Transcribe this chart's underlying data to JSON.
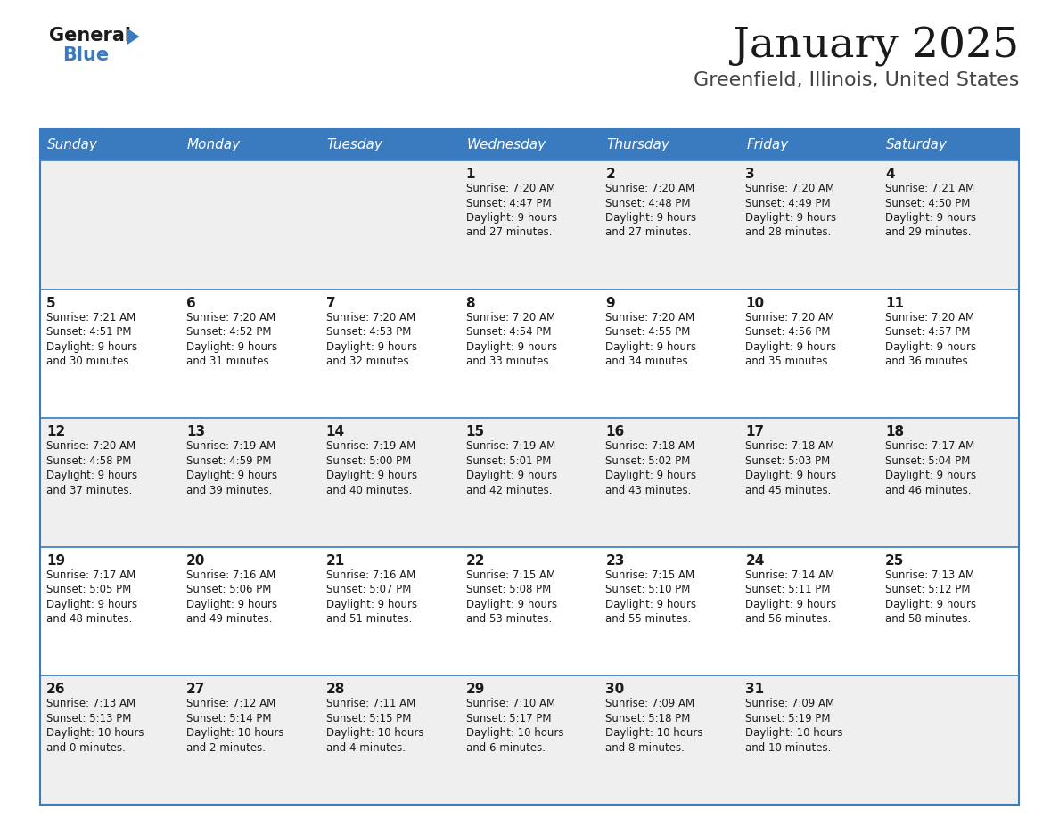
{
  "title": "January 2025",
  "subtitle": "Greenfield, Illinois, United States",
  "header_bg": "#3a7abf",
  "header_text": "#ffffff",
  "row_bg_odd": "#efefef",
  "row_bg_even": "#ffffff",
  "cell_border": "#3a7abf",
  "day_headers": [
    "Sunday",
    "Monday",
    "Tuesday",
    "Wednesday",
    "Thursday",
    "Friday",
    "Saturday"
  ],
  "weeks": [
    [
      {
        "day": "",
        "info": ""
      },
      {
        "day": "",
        "info": ""
      },
      {
        "day": "",
        "info": ""
      },
      {
        "day": "1",
        "info": "Sunrise: 7:20 AM\nSunset: 4:47 PM\nDaylight: 9 hours\nand 27 minutes."
      },
      {
        "day": "2",
        "info": "Sunrise: 7:20 AM\nSunset: 4:48 PM\nDaylight: 9 hours\nand 27 minutes."
      },
      {
        "day": "3",
        "info": "Sunrise: 7:20 AM\nSunset: 4:49 PM\nDaylight: 9 hours\nand 28 minutes."
      },
      {
        "day": "4",
        "info": "Sunrise: 7:21 AM\nSunset: 4:50 PM\nDaylight: 9 hours\nand 29 minutes."
      }
    ],
    [
      {
        "day": "5",
        "info": "Sunrise: 7:21 AM\nSunset: 4:51 PM\nDaylight: 9 hours\nand 30 minutes."
      },
      {
        "day": "6",
        "info": "Sunrise: 7:20 AM\nSunset: 4:52 PM\nDaylight: 9 hours\nand 31 minutes."
      },
      {
        "day": "7",
        "info": "Sunrise: 7:20 AM\nSunset: 4:53 PM\nDaylight: 9 hours\nand 32 minutes."
      },
      {
        "day": "8",
        "info": "Sunrise: 7:20 AM\nSunset: 4:54 PM\nDaylight: 9 hours\nand 33 minutes."
      },
      {
        "day": "9",
        "info": "Sunrise: 7:20 AM\nSunset: 4:55 PM\nDaylight: 9 hours\nand 34 minutes."
      },
      {
        "day": "10",
        "info": "Sunrise: 7:20 AM\nSunset: 4:56 PM\nDaylight: 9 hours\nand 35 minutes."
      },
      {
        "day": "11",
        "info": "Sunrise: 7:20 AM\nSunset: 4:57 PM\nDaylight: 9 hours\nand 36 minutes."
      }
    ],
    [
      {
        "day": "12",
        "info": "Sunrise: 7:20 AM\nSunset: 4:58 PM\nDaylight: 9 hours\nand 37 minutes."
      },
      {
        "day": "13",
        "info": "Sunrise: 7:19 AM\nSunset: 4:59 PM\nDaylight: 9 hours\nand 39 minutes."
      },
      {
        "day": "14",
        "info": "Sunrise: 7:19 AM\nSunset: 5:00 PM\nDaylight: 9 hours\nand 40 minutes."
      },
      {
        "day": "15",
        "info": "Sunrise: 7:19 AM\nSunset: 5:01 PM\nDaylight: 9 hours\nand 42 minutes."
      },
      {
        "day": "16",
        "info": "Sunrise: 7:18 AM\nSunset: 5:02 PM\nDaylight: 9 hours\nand 43 minutes."
      },
      {
        "day": "17",
        "info": "Sunrise: 7:18 AM\nSunset: 5:03 PM\nDaylight: 9 hours\nand 45 minutes."
      },
      {
        "day": "18",
        "info": "Sunrise: 7:17 AM\nSunset: 5:04 PM\nDaylight: 9 hours\nand 46 minutes."
      }
    ],
    [
      {
        "day": "19",
        "info": "Sunrise: 7:17 AM\nSunset: 5:05 PM\nDaylight: 9 hours\nand 48 minutes."
      },
      {
        "day": "20",
        "info": "Sunrise: 7:16 AM\nSunset: 5:06 PM\nDaylight: 9 hours\nand 49 minutes."
      },
      {
        "day": "21",
        "info": "Sunrise: 7:16 AM\nSunset: 5:07 PM\nDaylight: 9 hours\nand 51 minutes."
      },
      {
        "day": "22",
        "info": "Sunrise: 7:15 AM\nSunset: 5:08 PM\nDaylight: 9 hours\nand 53 minutes."
      },
      {
        "day": "23",
        "info": "Sunrise: 7:15 AM\nSunset: 5:10 PM\nDaylight: 9 hours\nand 55 minutes."
      },
      {
        "day": "24",
        "info": "Sunrise: 7:14 AM\nSunset: 5:11 PM\nDaylight: 9 hours\nand 56 minutes."
      },
      {
        "day": "25",
        "info": "Sunrise: 7:13 AM\nSunset: 5:12 PM\nDaylight: 9 hours\nand 58 minutes."
      }
    ],
    [
      {
        "day": "26",
        "info": "Sunrise: 7:13 AM\nSunset: 5:13 PM\nDaylight: 10 hours\nand 0 minutes."
      },
      {
        "day": "27",
        "info": "Sunrise: 7:12 AM\nSunset: 5:14 PM\nDaylight: 10 hours\nand 2 minutes."
      },
      {
        "day": "28",
        "info": "Sunrise: 7:11 AM\nSunset: 5:15 PM\nDaylight: 10 hours\nand 4 minutes."
      },
      {
        "day": "29",
        "info": "Sunrise: 7:10 AM\nSunset: 5:17 PM\nDaylight: 10 hours\nand 6 minutes."
      },
      {
        "day": "30",
        "info": "Sunrise: 7:09 AM\nSunset: 5:18 PM\nDaylight: 10 hours\nand 8 minutes."
      },
      {
        "day": "31",
        "info": "Sunrise: 7:09 AM\nSunset: 5:19 PM\nDaylight: 10 hours\nand 10 minutes."
      },
      {
        "day": "",
        "info": ""
      }
    ]
  ]
}
